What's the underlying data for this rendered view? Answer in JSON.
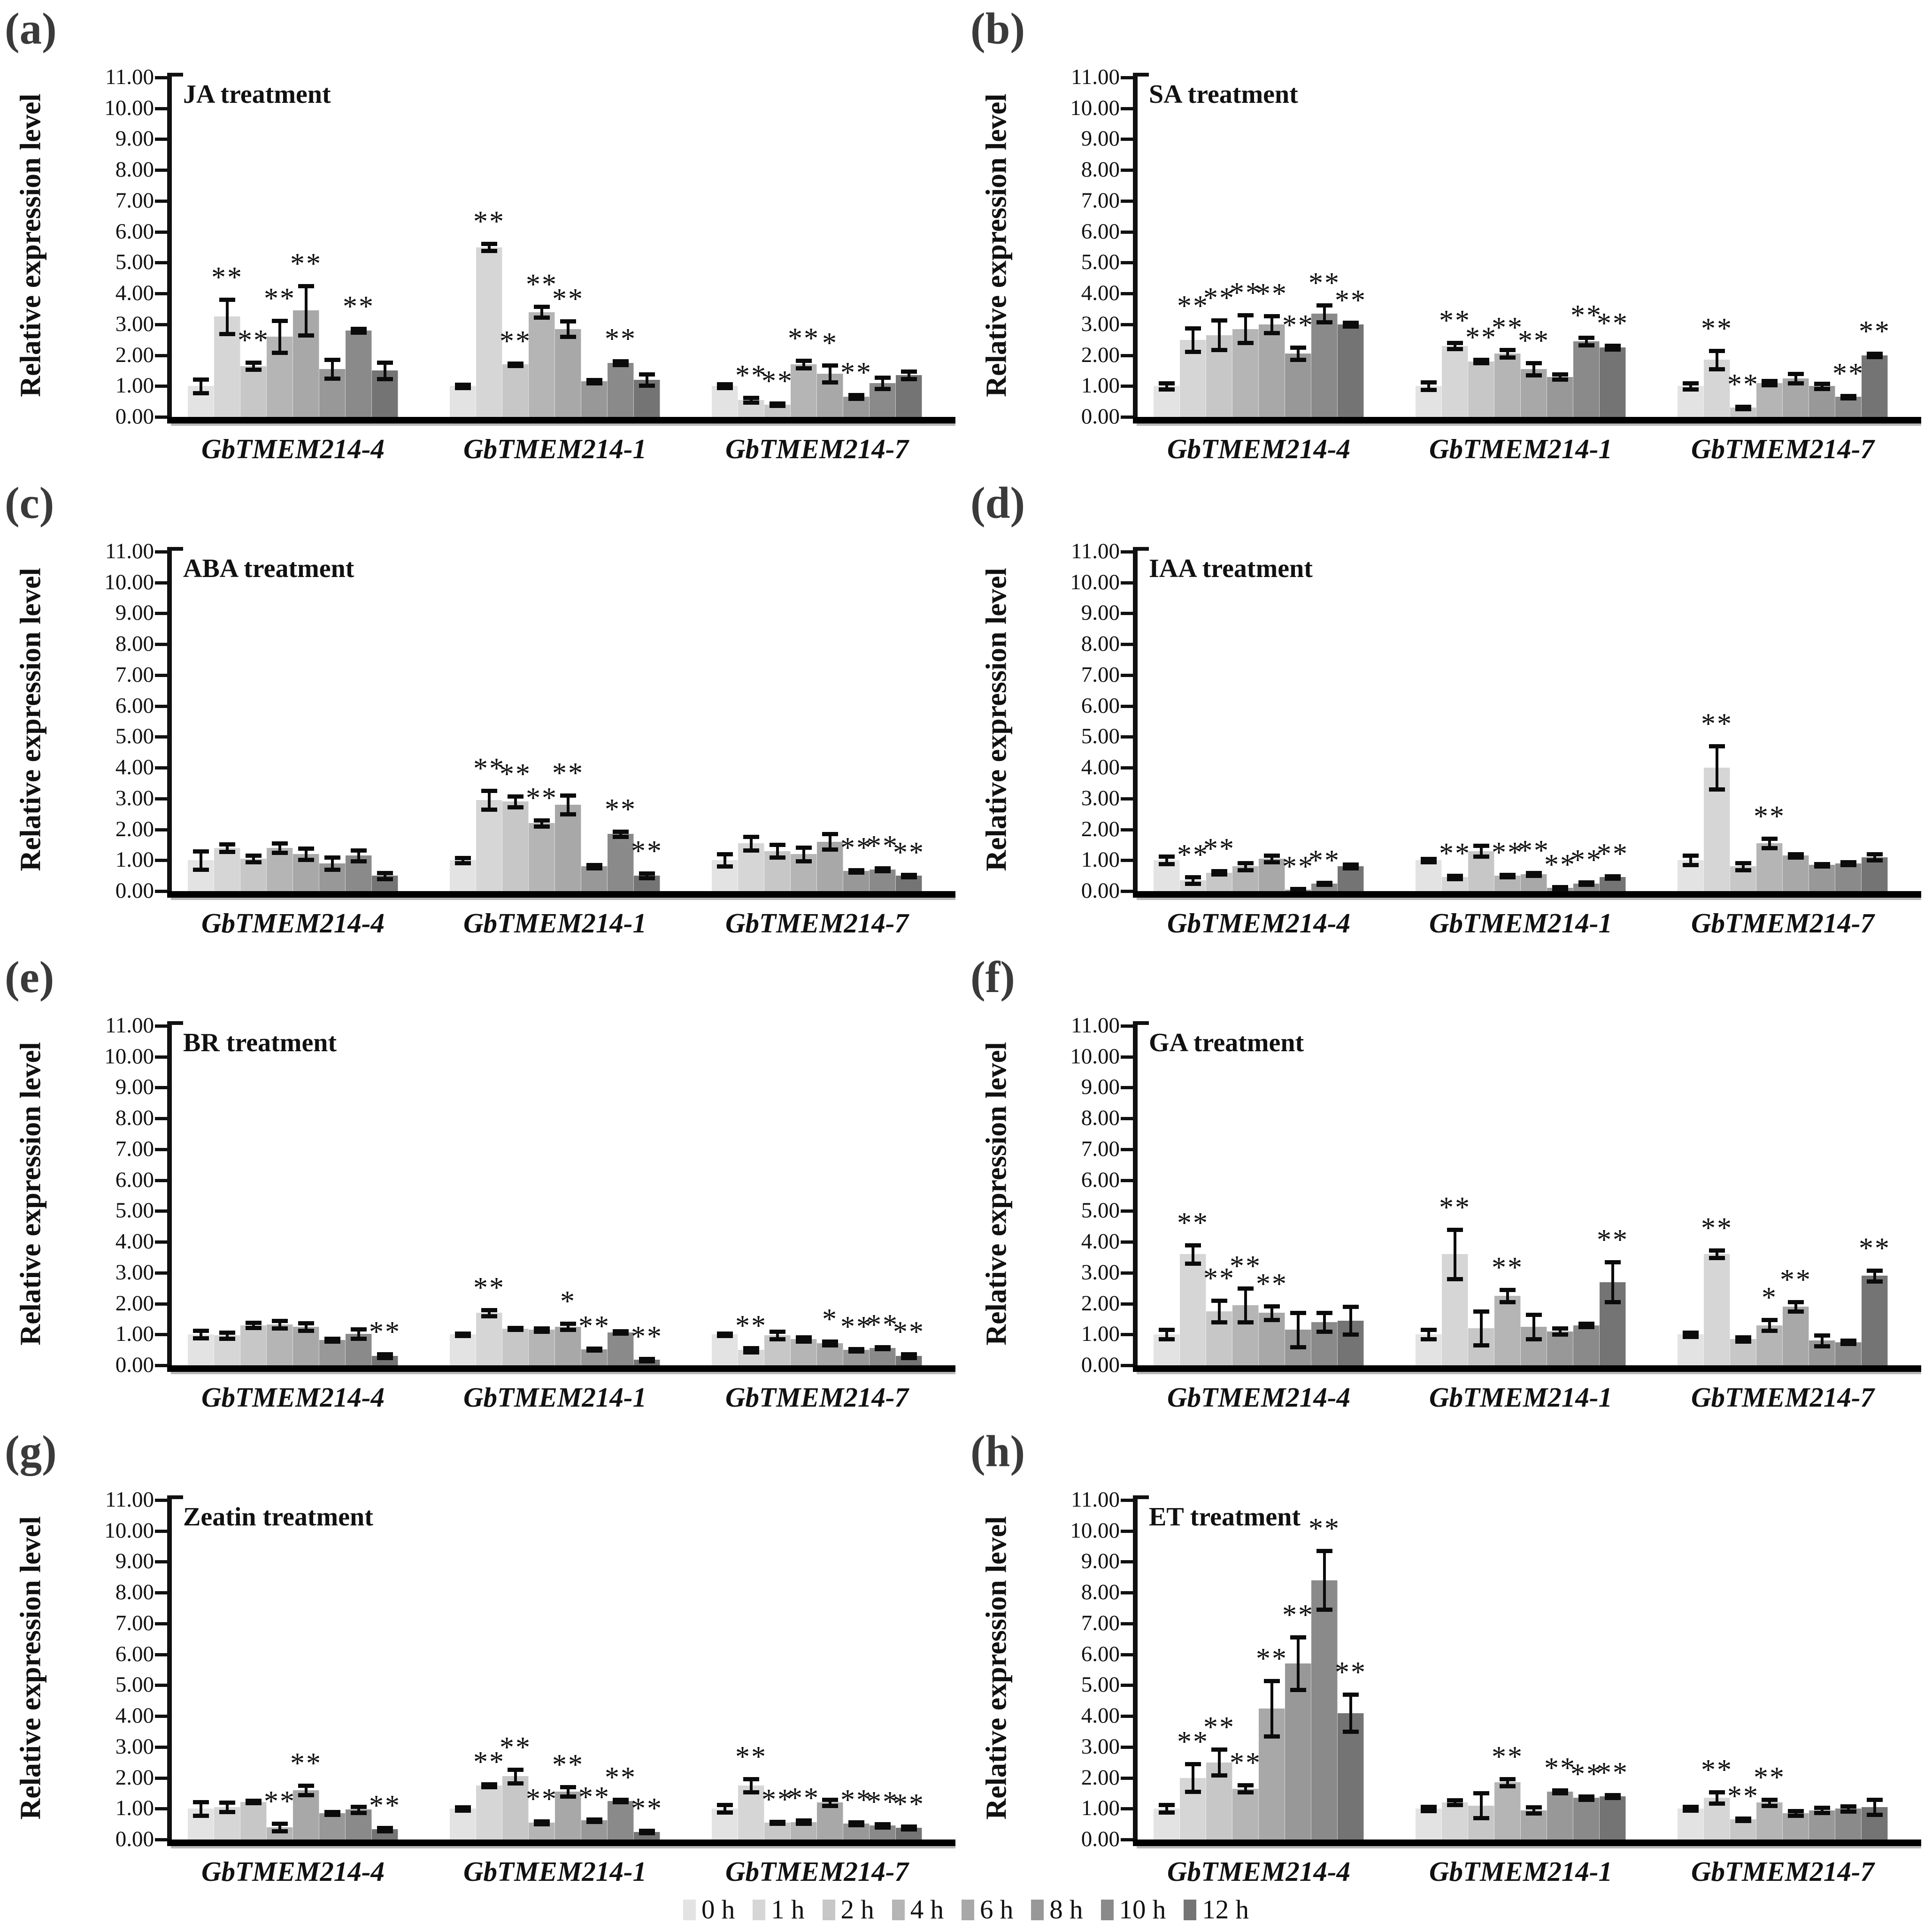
{
  "figure": {
    "y_axis_title": "Relative expression level",
    "y_tick_labels": [
      "0.00",
      "1.00",
      "2.00",
      "3.00",
      "4.00",
      "5.00",
      "6.00",
      "7.00",
      "8.00",
      "9.00",
      "10.00",
      "11.00"
    ],
    "gene_labels": [
      "GbTMEM214-4",
      "GbTMEM214-1",
      "GbTMEM214-7"
    ],
    "timepoints": [
      "0 h",
      "1 h",
      "2 h",
      "4 h",
      "6 h",
      "8 h",
      "10 h",
      "12 h"
    ],
    "series_colors": [
      "#e3e3e3",
      "#d6d6d6",
      "#c7c7c7",
      "#b5b5b5",
      "#a8a8a8",
      "#989898",
      "#8a8a8a",
      "#747474"
    ],
    "legend": {
      "items": [
        {
          "label": "0 h",
          "color": "#e3e3e3"
        },
        {
          "label": "1 h",
          "color": "#d6d6d6"
        },
        {
          "label": "2 h",
          "color": "#c7c7c7"
        },
        {
          "label": "4 h",
          "color": "#b5b5b5"
        },
        {
          "label": "6 h",
          "color": "#a8a8a8"
        },
        {
          "label": "8 h",
          "color": "#989898"
        },
        {
          "label": "10 h",
          "color": "#8a8a8a"
        },
        {
          "label": "12 h",
          "color": "#747474"
        }
      ]
    }
  },
  "chart_data": {
    "type": "bar",
    "ylim": [
      0,
      11
    ],
    "ylabel": "Relative expression level",
    "categories": [
      "GbTMEM214-4",
      "GbTMEM214-1",
      "GbTMEM214-7"
    ],
    "series_names": [
      "0 h",
      "1 h",
      "2 h",
      "4 h",
      "6 h",
      "8 h",
      "10 h",
      "12 h"
    ],
    "panels": [
      {
        "letter": "(a)",
        "title": "JA treatment",
        "groups": [
          {
            "gene": "GbTMEM214-4",
            "values": [
              1.0,
              3.25,
              1.65,
              2.6,
              3.45,
              1.55,
              2.8,
              1.5
            ],
            "errors": [
              0.22,
              0.55,
              0.12,
              0.52,
              0.8,
              0.3,
              0.06,
              0.27
            ],
            "sig": [
              "",
              "**",
              "**",
              "**",
              "**",
              "",
              "**",
              ""
            ]
          },
          {
            "gene": "GbTMEM214-1",
            "values": [
              1.0,
              5.5,
              1.7,
              3.4,
              2.85,
              1.15,
              1.75,
              1.2
            ],
            "errors": [
              0.05,
              0.12,
              0.04,
              0.18,
              0.25,
              0.05,
              0.06,
              0.18
            ],
            "sig": [
              "",
              "**",
              "**",
              "**",
              "**",
              "",
              "**",
              ""
            ]
          },
          {
            "gene": "GbTMEM214-7",
            "values": [
              1.0,
              0.55,
              0.4,
              1.7,
              1.4,
              0.65,
              1.1,
              1.35
            ],
            "errors": [
              0.06,
              0.08,
              0.04,
              0.12,
              0.27,
              0.06,
              0.18,
              0.12
            ],
            "sig": [
              "",
              "**",
              "**",
              "**",
              "*",
              "**",
              "",
              ""
            ]
          }
        ]
      },
      {
        "letter": "(b)",
        "title": "SA treatment",
        "groups": [
          {
            "gene": "GbTMEM214-4",
            "values": [
              1.0,
              2.5,
              2.65,
              2.85,
              3.0,
              2.05,
              3.35,
              3.0
            ],
            "errors": [
              0.1,
              0.38,
              0.48,
              0.45,
              0.27,
              0.2,
              0.27,
              0.06
            ],
            "sig": [
              "",
              "**",
              "**",
              "**",
              "**",
              "**",
              "**",
              "**"
            ]
          },
          {
            "gene": "GbTMEM214-1",
            "values": [
              1.0,
              2.3,
              1.8,
              2.05,
              1.55,
              1.3,
              2.45,
              2.25
            ],
            "errors": [
              0.12,
              0.1,
              0.05,
              0.12,
              0.2,
              0.08,
              0.12,
              0.06
            ],
            "sig": [
              "",
              "**",
              "**",
              "**",
              "**",
              "",
              "**",
              "**"
            ]
          },
          {
            "gene": "GbTMEM214-7",
            "values": [
              1.0,
              1.85,
              0.3,
              1.1,
              1.25,
              1.0,
              0.65,
              2.0
            ],
            "errors": [
              0.1,
              0.3,
              0.04,
              0.07,
              0.15,
              0.08,
              0.04,
              0.05
            ],
            "sig": [
              "",
              "**",
              "**",
              "",
              "",
              "",
              "**",
              "**"
            ]
          }
        ]
      },
      {
        "letter": "(c)",
        "title": "ABA treatment",
        "groups": [
          {
            "gene": "GbTMEM214-4",
            "values": [
              1.0,
              1.4,
              1.05,
              1.4,
              1.2,
              0.9,
              1.15,
              0.5
            ],
            "errors": [
              0.3,
              0.12,
              0.1,
              0.15,
              0.18,
              0.2,
              0.18,
              0.1
            ],
            "sig": [
              "",
              "",
              "",
              "",
              "",
              "",
              "",
              ""
            ]
          },
          {
            "gene": "GbTMEM214-1",
            "values": [
              1.0,
              2.95,
              2.9,
              2.2,
              2.8,
              0.8,
              1.85,
              0.5
            ],
            "errors": [
              0.08,
              0.3,
              0.18,
              0.1,
              0.3,
              0.05,
              0.08,
              0.08
            ],
            "sig": [
              "",
              "**",
              "**",
              "**",
              "**",
              "",
              "**",
              "**"
            ]
          },
          {
            "gene": "GbTMEM214-7",
            "values": [
              1.0,
              1.55,
              1.3,
              1.2,
              1.6,
              0.65,
              0.7,
              0.5
            ],
            "errors": [
              0.2,
              0.22,
              0.2,
              0.22,
              0.25,
              0.04,
              0.04,
              0.04
            ],
            "sig": [
              "",
              "",
              "",
              "",
              "",
              "**",
              "**",
              "**"
            ]
          }
        ]
      },
      {
        "letter": "(d)",
        "title": "IAA treatment",
        "groups": [
          {
            "gene": "GbTMEM214-4",
            "values": [
              1.0,
              0.35,
              0.6,
              0.8,
              1.05,
              0.05,
              0.25,
              0.8
            ],
            "errors": [
              0.12,
              0.1,
              0.05,
              0.12,
              0.1,
              0.02,
              0.03,
              0.06
            ],
            "sig": [
              "",
              "**",
              "**",
              "",
              "",
              "**",
              "**",
              ""
            ]
          },
          {
            "gene": "GbTMEM214-1",
            "values": [
              1.0,
              0.45,
              1.3,
              0.5,
              0.55,
              0.1,
              0.25,
              0.45
            ],
            "errors": [
              0.05,
              0.05,
              0.18,
              0.04,
              0.05,
              0.04,
              0.04,
              0.04
            ],
            "sig": [
              "",
              "**",
              "",
              "**",
              "**",
              "**",
              "**",
              "**"
            ]
          },
          {
            "gene": "GbTMEM214-7",
            "values": [
              1.0,
              4.0,
              0.8,
              1.55,
              1.15,
              0.85,
              0.9,
              1.1
            ],
            "errors": [
              0.15,
              0.7,
              0.12,
              0.15,
              0.05,
              0.04,
              0.05,
              0.1
            ],
            "sig": [
              "",
              "**",
              "",
              "**",
              "",
              "",
              "",
              ""
            ]
          }
        ]
      },
      {
        "letter": "(e)",
        "title": "BR treatment",
        "groups": [
          {
            "gene": "GbTMEM214-4",
            "values": [
              1.0,
              0.97,
              1.3,
              1.32,
              1.25,
              0.82,
              1.02,
              0.3
            ],
            "errors": [
              0.12,
              0.1,
              0.08,
              0.12,
              0.12,
              0.05,
              0.15,
              0.06
            ],
            "sig": [
              "",
              "",
              "",
              "",
              "",
              "",
              "",
              "**"
            ]
          },
          {
            "gene": "GbTMEM214-1",
            "values": [
              1.0,
              1.7,
              1.18,
              1.15,
              1.25,
              0.52,
              1.07,
              0.18
            ],
            "errors": [
              0.04,
              0.1,
              0.03,
              0.05,
              0.1,
              0.03,
              0.04,
              0.04
            ],
            "sig": [
              "",
              "**",
              "",
              "",
              "*",
              "**",
              "",
              "**"
            ]
          },
          {
            "gene": "GbTMEM214-7",
            "values": [
              1.0,
              0.5,
              0.97,
              0.85,
              0.72,
              0.5,
              0.57,
              0.3
            ],
            "errors": [
              0.04,
              0.07,
              0.12,
              0.07,
              0.06,
              0.04,
              0.03,
              0.06
            ],
            "sig": [
              "",
              "**",
              "",
              "",
              "*",
              "**",
              "**",
              "**"
            ]
          }
        ]
      },
      {
        "letter": "(f)",
        "title": "GA treatment",
        "groups": [
          {
            "gene": "GbTMEM214-4",
            "values": [
              1.0,
              3.6,
              1.75,
              1.95,
              1.7,
              1.15,
              1.4,
              1.45
            ],
            "errors": [
              0.15,
              0.3,
              0.35,
              0.55,
              0.22,
              0.55,
              0.3,
              0.45
            ],
            "sig": [
              "",
              "**",
              "**",
              "**",
              "**",
              "",
              "",
              ""
            ]
          },
          {
            "gene": "GbTMEM214-1",
            "values": [
              1.0,
              3.6,
              1.2,
              2.25,
              1.25,
              1.1,
              1.3,
              2.7
            ],
            "errors": [
              0.15,
              0.8,
              0.55,
              0.2,
              0.4,
              0.1,
              0.05,
              0.65
            ],
            "sig": [
              "",
              "**",
              "",
              "**",
              "",
              "",
              "",
              "**"
            ]
          },
          {
            "gene": "GbTMEM214-7",
            "values": [
              1.0,
              3.6,
              0.85,
              1.3,
              1.9,
              0.8,
              0.75,
              2.9
            ],
            "errors": [
              0.07,
              0.12,
              0.07,
              0.18,
              0.15,
              0.18,
              0.05,
              0.18
            ],
            "sig": [
              "",
              "**",
              "",
              "*",
              "**",
              "",
              "",
              "**"
            ]
          }
        ]
      },
      {
        "letter": "(g)",
        "title": "Zeatin treatment",
        "groups": [
          {
            "gene": "GbTMEM214-4",
            "values": [
              1.0,
              1.05,
              1.22,
              0.4,
              1.6,
              0.85,
              0.97,
              0.33
            ],
            "errors": [
              0.22,
              0.15,
              0.04,
              0.12,
              0.15,
              0.05,
              0.1,
              0.05
            ],
            "sig": [
              "",
              "",
              "",
              "**",
              "**",
              "",
              "",
              "**"
            ]
          },
          {
            "gene": "GbTMEM214-1",
            "values": [
              1.0,
              1.75,
              2.05,
              0.55,
              1.55,
              0.62,
              1.25,
              0.25
            ],
            "errors": [
              0.05,
              0.05,
              0.22,
              0.05,
              0.15,
              0.04,
              0.04,
              0.04
            ],
            "sig": [
              "",
              "**",
              "**",
              "**",
              "**",
              "**",
              "**",
              "**"
            ]
          },
          {
            "gene": "GbTMEM214-7",
            "values": [
              1.0,
              1.75,
              0.55,
              0.57,
              1.2,
              0.52,
              0.45,
              0.38
            ],
            "errors": [
              0.12,
              0.22,
              0.03,
              0.05,
              0.1,
              0.05,
              0.05,
              0.04
            ],
            "sig": [
              "",
              "**",
              "**",
              "**",
              "",
              "**",
              "**",
              "**"
            ]
          }
        ]
      },
      {
        "letter": "(h)",
        "title": "ET treatment",
        "groups": [
          {
            "gene": "GbTMEM214-4",
            "values": [
              1.0,
              2.0,
              2.5,
              1.65,
              4.25,
              5.7,
              8.4,
              4.1
            ],
            "errors": [
              0.12,
              0.45,
              0.42,
              0.12,
              0.9,
              0.85,
              0.95,
              0.6
            ],
            "sig": [
              "",
              "**",
              "**",
              "**",
              "**",
              "**",
              "**",
              "**"
            ]
          },
          {
            "gene": "GbTMEM214-1",
            "values": [
              1.0,
              1.2,
              1.1,
              1.85,
              0.95,
              1.55,
              1.35,
              1.4
            ],
            "errors": [
              0.07,
              0.08,
              0.4,
              0.12,
              0.1,
              0.05,
              0.05,
              0.04
            ],
            "sig": [
              "",
              "",
              "",
              "**",
              "",
              "**",
              "**",
              "**"
            ]
          },
          {
            "gene": "GbTMEM214-7",
            "values": [
              1.0,
              1.35,
              0.65,
              1.2,
              0.85,
              0.95,
              1.0,
              1.05
            ],
            "errors": [
              0.06,
              0.18,
              0.04,
              0.1,
              0.08,
              0.08,
              0.08,
              0.25
            ],
            "sig": [
              "",
              "**",
              "**",
              "**",
              "",
              "",
              "",
              ""
            ]
          }
        ]
      }
    ]
  }
}
